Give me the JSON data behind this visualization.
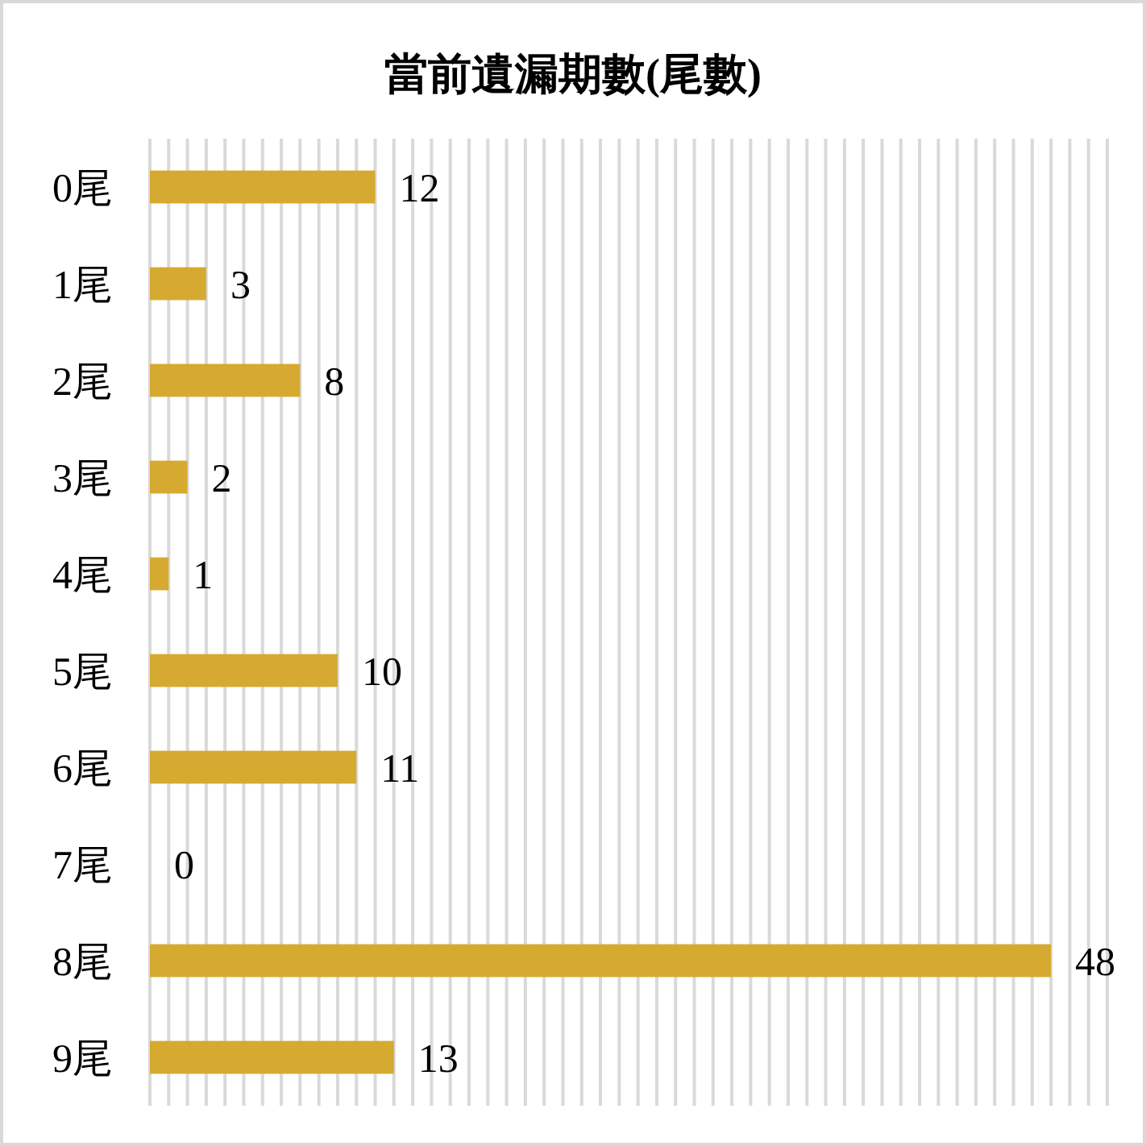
{
  "chart_data": {
    "type": "bar",
    "title": "當前遺漏期數(尾數)",
    "orientation": "horizontal",
    "categories": [
      "0尾",
      "1尾",
      "2尾",
      "3尾",
      "4尾",
      "5尾",
      "6尾",
      "7尾",
      "8尾",
      "9尾"
    ],
    "values": [
      12,
      3,
      8,
      2,
      1,
      10,
      11,
      0,
      48,
      13
    ],
    "color": "#d6aa30",
    "xlim": [
      0,
      51
    ],
    "xticks": [
      {
        "value": 0,
        "label": null
      },
      {
        "value": 1,
        "label": null
      },
      {
        "value": 2,
        "label": null
      },
      {
        "value": 3,
        "label": null
      },
      {
        "value": 4,
        "label": null
      },
      {
        "value": 5,
        "label": null
      },
      {
        "value": 6,
        "label": null
      },
      {
        "value": 7,
        "label": null
      },
      {
        "value": 8,
        "label": null
      },
      {
        "value": 9,
        "label": null
      },
      {
        "value": 10,
        "label": null
      },
      {
        "value": 11,
        "label": null
      },
      {
        "value": 12,
        "label": null
      },
      {
        "value": 13,
        "label": null
      },
      {
        "value": 14,
        "label": null
      },
      {
        "value": 15,
        "label": null
      },
      {
        "value": 16,
        "label": null
      },
      {
        "value": 17,
        "label": null
      },
      {
        "value": 18,
        "label": null
      },
      {
        "value": 19,
        "label": null
      },
      {
        "value": 20,
        "label": null
      },
      {
        "value": 21,
        "label": null
      },
      {
        "value": 22,
        "label": null
      },
      {
        "value": 23,
        "label": null
      },
      {
        "value": 24,
        "label": null
      },
      {
        "value": 25,
        "label": null
      },
      {
        "value": 26,
        "label": null
      },
      {
        "value": 27,
        "label": null
      },
      {
        "value": 28,
        "label": null
      },
      {
        "value": 29,
        "label": null
      },
      {
        "value": 30,
        "label": null
      },
      {
        "value": 31,
        "label": null
      },
      {
        "value": 32,
        "label": null
      },
      {
        "value": 33,
        "label": null
      },
      {
        "value": 34,
        "label": null
      },
      {
        "value": 35,
        "label": null
      },
      {
        "value": 36,
        "label": null
      },
      {
        "value": 37,
        "label": null
      },
      {
        "value": 38,
        "label": null
      },
      {
        "value": 39,
        "label": null
      },
      {
        "value": 40,
        "label": null
      },
      {
        "value": 41,
        "label": null
      },
      {
        "value": 42,
        "label": null
      },
      {
        "value": 43,
        "label": null
      },
      {
        "value": 44,
        "label": null
      },
      {
        "value": 45,
        "label": null
      },
      {
        "value": 46,
        "label": null
      },
      {
        "value": 47,
        "label": null
      },
      {
        "value": 48,
        "label": null
      },
      {
        "value": 49,
        "label": null
      },
      {
        "value": 50,
        "label": null
      },
      {
        "value": 51,
        "label": null
      }
    ],
    "grid": "x",
    "data_labels": true,
    "tick_labels": "y"
  }
}
